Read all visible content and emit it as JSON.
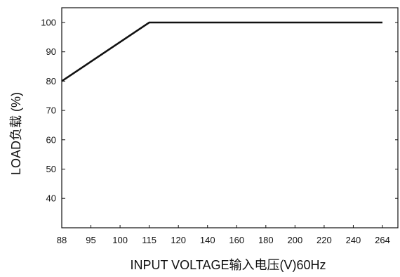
{
  "chart_data": {
    "type": "line",
    "title": "",
    "xlabel": "INPUT VOLTAGE输入电压(V)60Hz",
    "ylabel": "LOAD负载 (%)",
    "x_ticks": [
      "88",
      "95",
      "100",
      "115",
      "120",
      "140",
      "160",
      "180",
      "200",
      "220",
      "240",
      "264"
    ],
    "y_ticks": [
      40,
      50,
      60,
      70,
      80,
      90,
      100
    ],
    "series": [
      {
        "points": [
          {
            "x": "88",
            "y": 80
          },
          {
            "x": "115",
            "y": 100
          },
          {
            "x": "264",
            "y": 100
          }
        ]
      }
    ],
    "ylim": [
      27,
      105
    ],
    "grid": false,
    "colors": {
      "line": "#111111",
      "axis": "#111111"
    }
  }
}
